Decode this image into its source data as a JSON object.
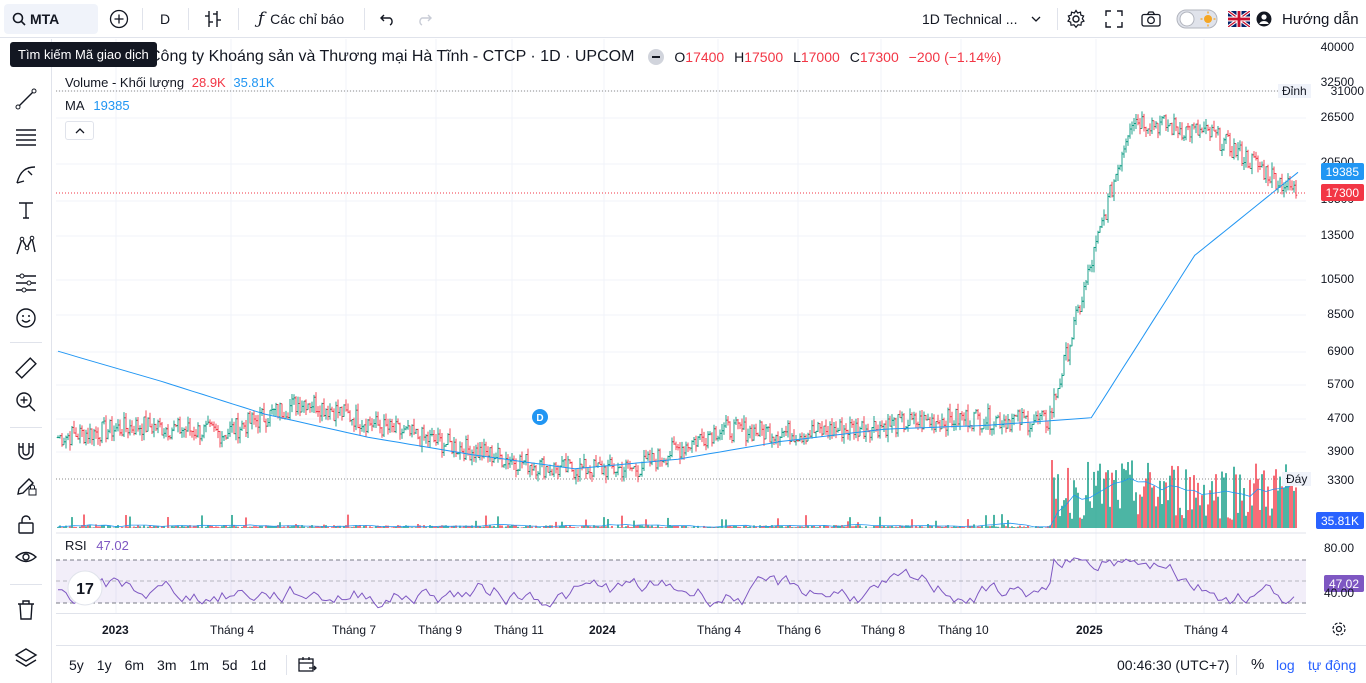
{
  "toolbar": {
    "symbol": "MTA",
    "interval": "D",
    "indicators_label": "Các chỉ báo",
    "layout_name": "1D Technical ...",
    "guide_label": "Hướng dẫn"
  },
  "tooltip": "Tìm kiếm Mã giao dịch",
  "legend": {
    "title": "Công ty Khoáng sản và Thương mại Hà Tĩnh - CTCP · 1D · UPCOM",
    "o_label": "O",
    "o_value": "17400",
    "h_label": "H",
    "h_value": "17500",
    "l_label": "L",
    "l_value": "17000",
    "c_label": "C",
    "c_value": "17300",
    "change": "−200 (−1.14%)",
    "volume_label": "Volume - Khối lượng",
    "volume_value": "28.9K",
    "volume_ma": "35.81K",
    "ma_label": "MA",
    "ma_value": "19385",
    "rsi_label": "RSI",
    "rsi_value": "47.02"
  },
  "price_axis": {
    "labels": [
      "40000",
      "32500",
      "26500",
      "20500",
      "16500",
      "13500",
      "10500",
      "8500",
      "6900",
      "5700",
      "4700",
      "3900",
      "3300"
    ],
    "high_label": "Đỉnh",
    "high_value": "31000",
    "low_label": "Đáy",
    "low_value": "3300",
    "ma_tag": "19385",
    "price_tag": "17300",
    "vol_tag": "35.81K",
    "rsi_upper": "80.00",
    "rsi_tag": "47.02",
    "rsi_lower": "40.00"
  },
  "time_axis": [
    "2023",
    "Tháng 4",
    "Tháng 7",
    "Tháng 9",
    "Tháng 11",
    "2024",
    "Tháng 4",
    "Tháng 6",
    "Tháng 8",
    "Tháng 10",
    "2025",
    "Tháng 4"
  ],
  "bottom": {
    "ranges": [
      "5y",
      "1y",
      "6m",
      "3m",
      "1m",
      "5d",
      "1d"
    ],
    "clock": "00:46:30 (UTC+7)",
    "percent": "%",
    "log": "log",
    "auto": "tự động"
  },
  "dividend_marker": "D",
  "colors": {
    "up": "#089981",
    "down": "#f23645",
    "ma": "#2196f3",
    "rsi": "#7e57c2",
    "accent": "#2962ff"
  },
  "chart_data": {
    "type": "line",
    "series": [
      {
        "name": "MA",
        "y": [
          6900,
          5800,
          4800,
          4200,
          3800,
          3500,
          3700,
          4100,
          4400,
          4500,
          4700,
          12000,
          19385
        ]
      }
    ],
    "close_series": [
      4200,
      4500,
      4300,
      5200,
      4400,
      3900,
      3500,
      3500,
      4400,
      4300,
      4500,
      4700,
      4600,
      26500,
      24000,
      17300
    ],
    "ylim": [
      3000,
      40000
    ]
  }
}
